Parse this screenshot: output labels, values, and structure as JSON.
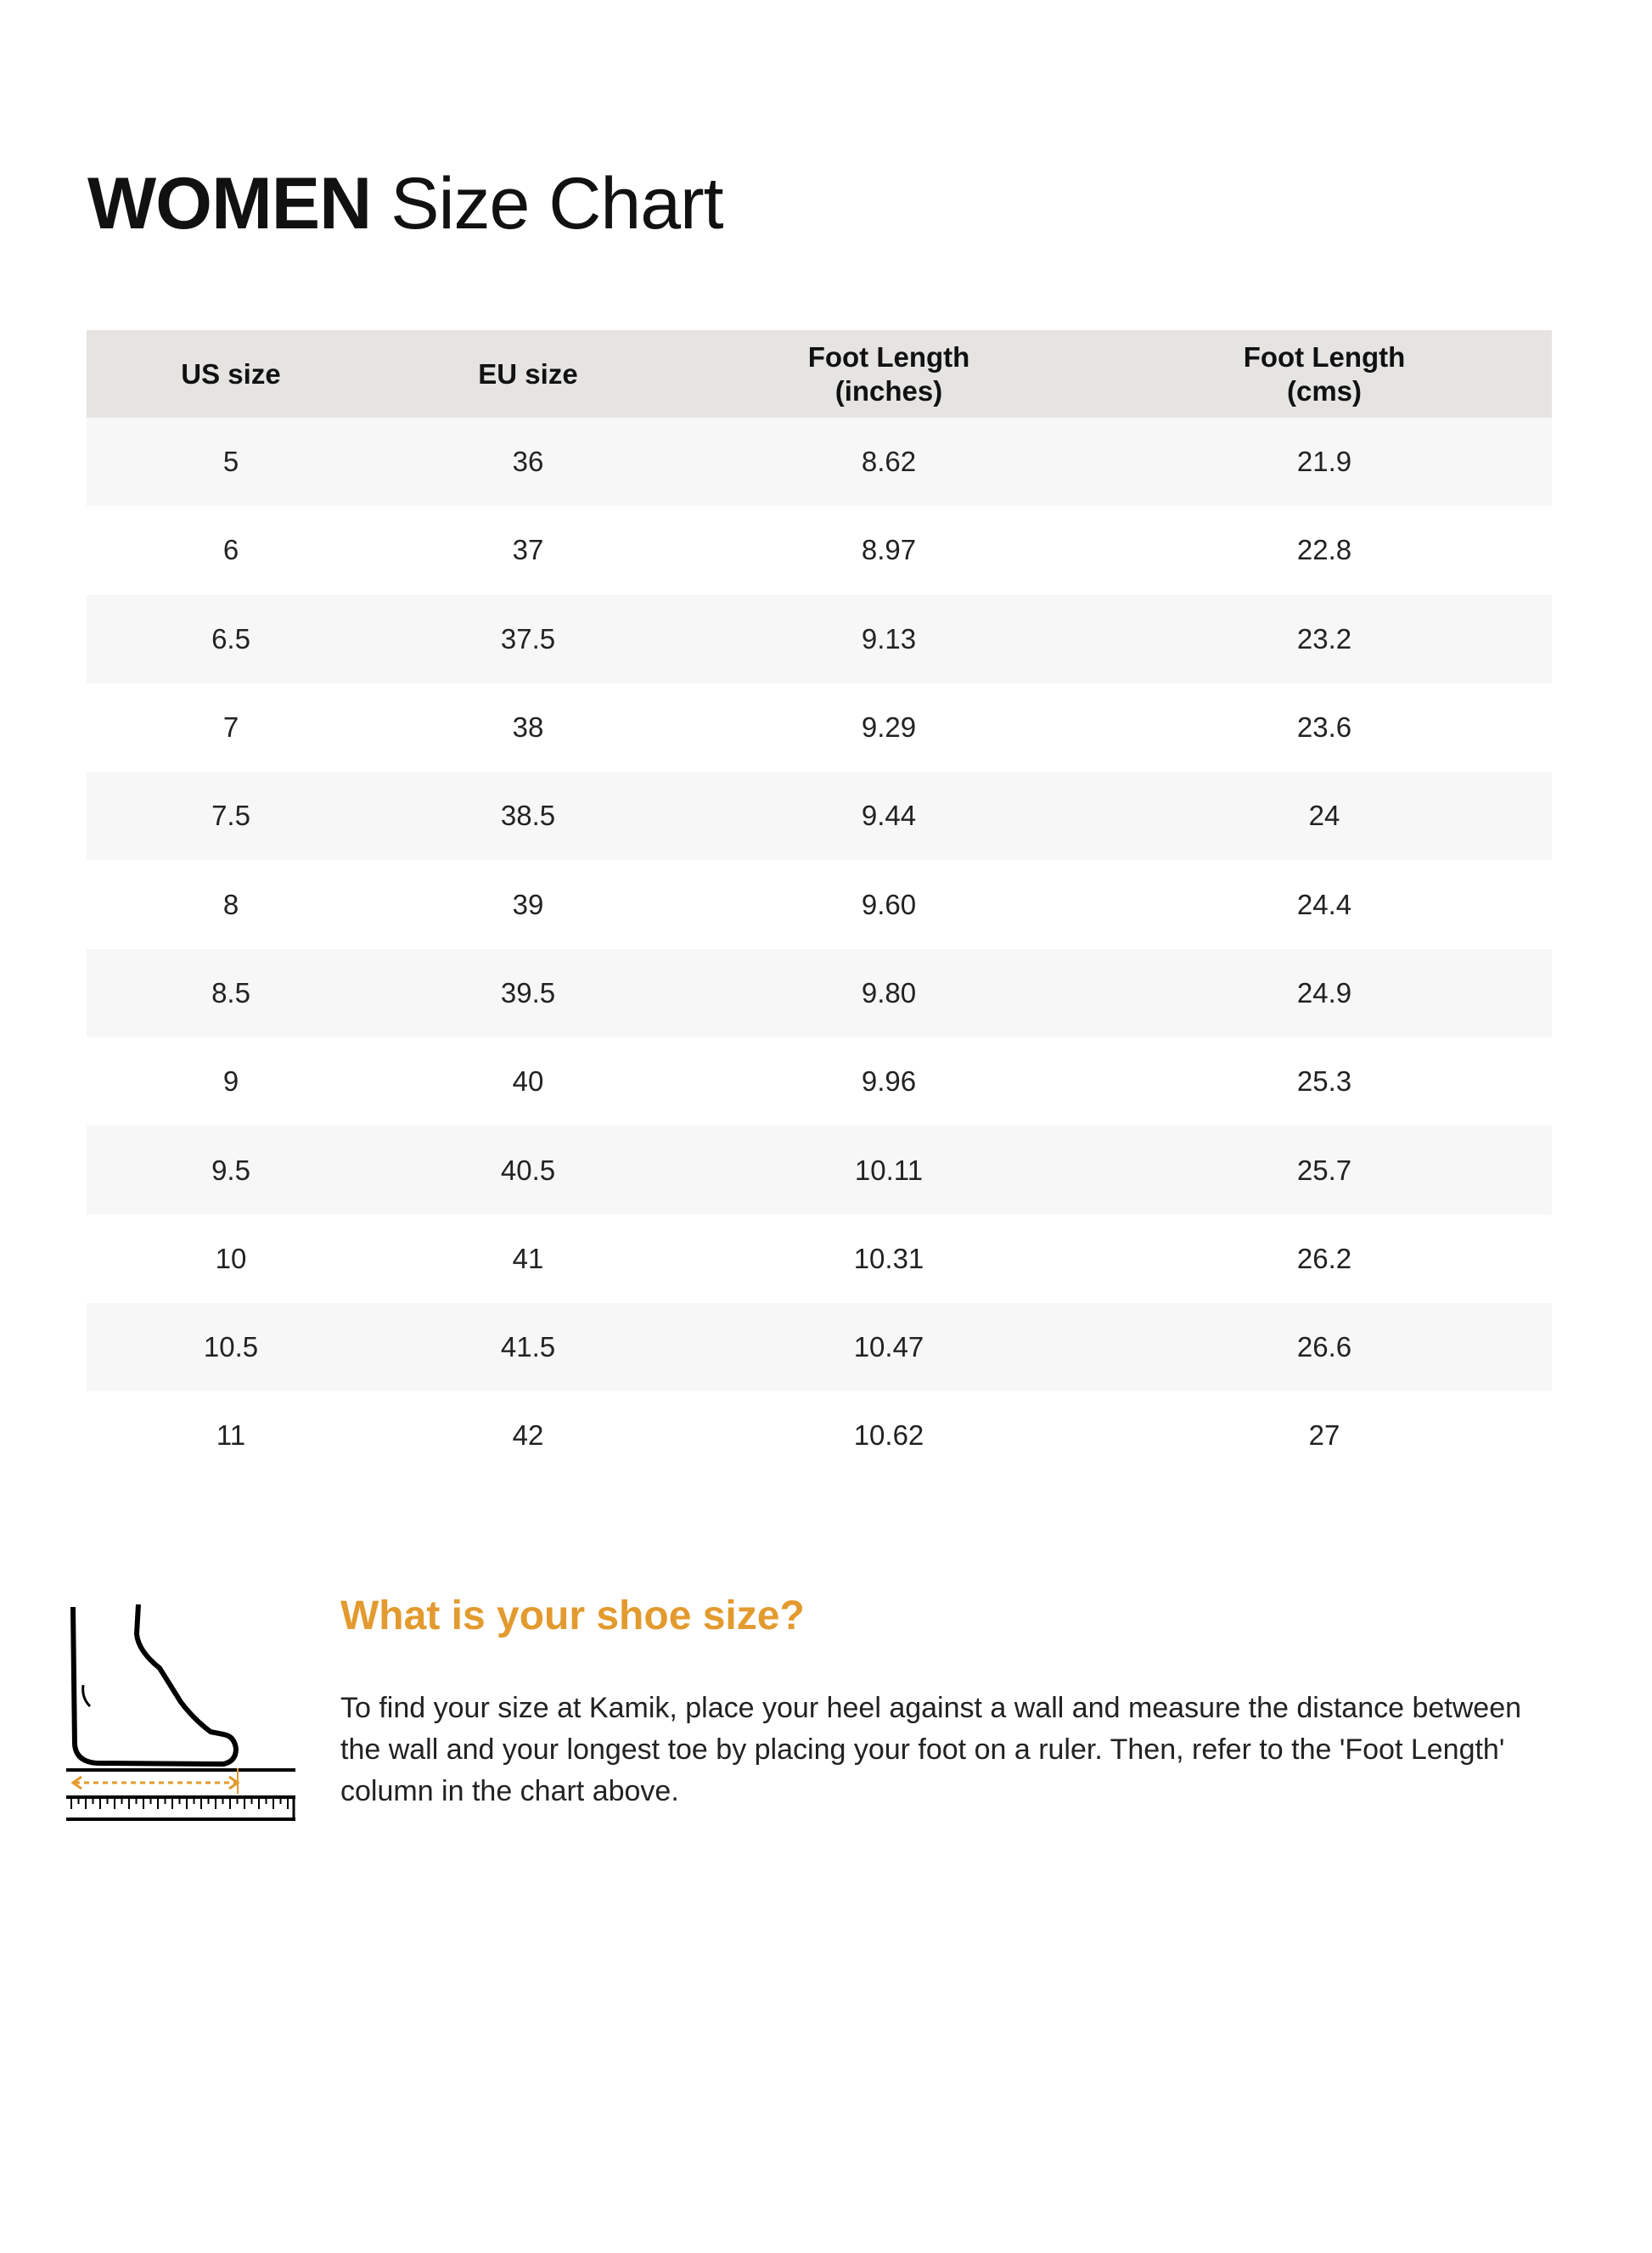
{
  "title": {
    "bold": "WOMEN",
    "rest": "Size Chart"
  },
  "table": {
    "headers": [
      [
        "US size",
        ""
      ],
      [
        "EU size",
        ""
      ],
      [
        "Foot Length",
        "(inches)"
      ],
      [
        "Foot Length",
        "(cms)"
      ]
    ],
    "rows": [
      [
        "5",
        "36",
        "8.62",
        "21.9"
      ],
      [
        "6",
        "37",
        "8.97",
        "22.8"
      ],
      [
        "6.5",
        "37.5",
        "9.13",
        "23.2"
      ],
      [
        "7",
        "38",
        "9.29",
        "23.6"
      ],
      [
        "7.5",
        "38.5",
        "9.44",
        "24"
      ],
      [
        "8",
        "39",
        "9.60",
        "24.4"
      ],
      [
        "8.5",
        "39.5",
        "9.80",
        "24.9"
      ],
      [
        "9",
        "40",
        "9.96",
        "25.3"
      ],
      [
        "9.5",
        "40.5",
        "10.11",
        "25.7"
      ],
      [
        "10",
        "41",
        "10.31",
        "26.2"
      ],
      [
        "10.5",
        "41.5",
        "10.47",
        "26.6"
      ],
      [
        "11",
        "42",
        "10.62",
        "27"
      ]
    ]
  },
  "info": {
    "heading": "What is your shoe size?",
    "text": "To find your size at Kamik, place your heel against a wall and measure the distance between the wall and your longest toe by placing your foot on a ruler. Then, refer to the 'Foot Length' column in the chart above.",
    "illustration_icon": "foot-on-ruler-icon"
  },
  "colors": {
    "accent": "#e39a2e",
    "header_bg": "#e5e4e2",
    "stripe_bg": "#f7f7f7"
  }
}
